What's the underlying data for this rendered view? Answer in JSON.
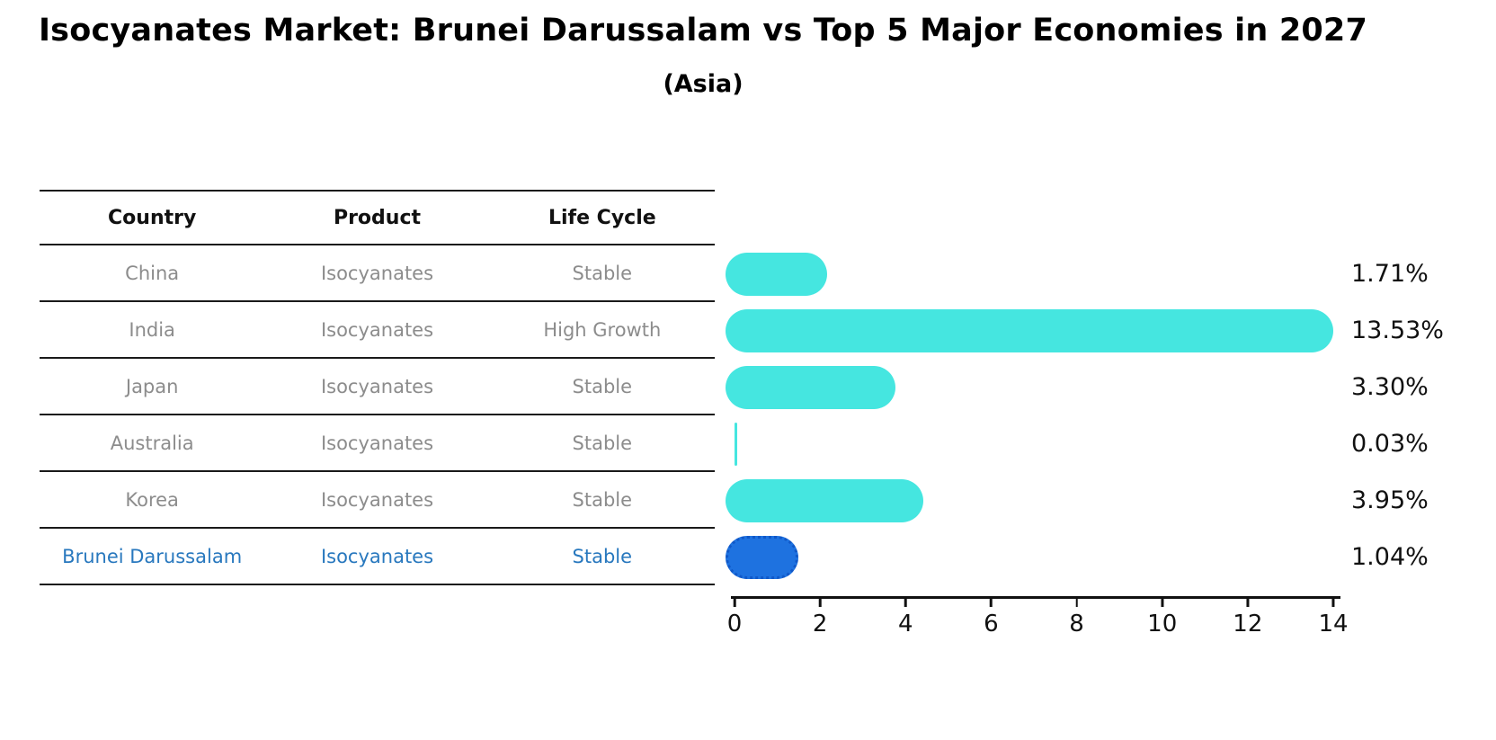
{
  "title": "Isocyanates Market: Brunei Darussalam vs Top 5 Major Economies in 2027",
  "subtitle": "(Asia)",
  "table": {
    "headers": [
      "Country",
      "Product",
      "Life Cycle"
    ],
    "rows": [
      {
        "country": "China",
        "product": "Isocyanates",
        "life_cycle": "Stable",
        "highlight": false
      },
      {
        "country": "India",
        "product": "Isocyanates",
        "life_cycle": "High Growth",
        "highlight": false
      },
      {
        "country": "Japan",
        "product": "Isocyanates",
        "life_cycle": "Stable",
        "highlight": false
      },
      {
        "country": "Australia",
        "product": "Isocyanates",
        "life_cycle": "Stable",
        "highlight": false
      },
      {
        "country": "Korea",
        "product": "Isocyanates",
        "life_cycle": "Stable",
        "highlight": false
      },
      {
        "country": "Brunei Darussalam",
        "product": "Isocyanates",
        "life_cycle": "Stable",
        "highlight": true
      }
    ]
  },
  "chart_data": {
    "type": "bar",
    "orientation": "horizontal",
    "categories": [
      "China",
      "India",
      "Japan",
      "Australia",
      "Korea",
      "Brunei Darussalam"
    ],
    "values": [
      1.71,
      13.53,
      3.3,
      0.03,
      3.95,
      1.04
    ],
    "value_labels": [
      "1.71%",
      "13.53%",
      "3.30%",
      "0.03%",
      "3.95%",
      "1.04%"
    ],
    "x_ticks": [
      "0",
      "2",
      "4",
      "6",
      "8",
      "10",
      "12",
      "14"
    ],
    "xlim": [
      0,
      14
    ],
    "grid": false,
    "legend": false,
    "bar_color": "#45e6e0",
    "highlight_color": "#1e72e0",
    "highlight_index": 5,
    "highlight_text_color": "#2878be"
  }
}
